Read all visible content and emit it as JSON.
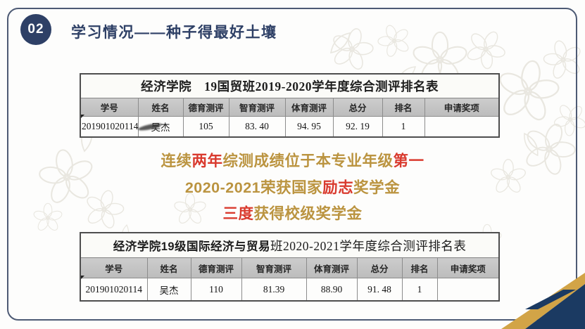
{
  "colors": {
    "navy": "#2e4066",
    "frame": "#4d5a74",
    "gold": "#bb9440",
    "red": "#d93a2e",
    "gold_band": "#d2a447",
    "deep_navy": "#1b3a62",
    "header_bg": "#c4c4c4"
  },
  "header": {
    "badge": "02",
    "title": "学习情况——种子得最好土壤"
  },
  "table1": {
    "title": "经济学院　19国贸班2019-2020学年度综合测评排名表",
    "headers": [
      "学号",
      "姓名",
      "德育测评",
      "智育测评",
      "体育测评",
      "总分",
      "排名",
      "申请奖项"
    ],
    "row": [
      "201901020114",
      "吴杰",
      "105",
      "83. 40",
      "94. 95",
      "92. 19",
      "1",
      ""
    ]
  },
  "highlights": {
    "lines": [
      {
        "segments": [
          {
            "text": "连续",
            "color": "gold"
          },
          {
            "text": "两年",
            "color": "red"
          },
          {
            "text": "综测成绩位于本专业年级",
            "color": "gold"
          },
          {
            "text": "第一",
            "color": "red"
          }
        ]
      },
      {
        "segments": [
          {
            "text": "2020-2021荣获国家",
            "color": "gold"
          },
          {
            "text": "励志",
            "color": "red"
          },
          {
            "text": "奖学金",
            "color": "gold"
          }
        ]
      },
      {
        "segments": [
          {
            "text": "三度",
            "color": "red"
          },
          {
            "text": "获得校级奖学金",
            "color": "gold"
          }
        ]
      }
    ]
  },
  "table2": {
    "title_bold": "经济学院19级国际经济与贸易",
    "title_rest": "班2020-2021学年度综合测评排名表",
    "headers": [
      "学号",
      "姓名",
      "德育测评",
      "智育测评",
      "体育测评",
      "总分",
      "排名",
      "申请奖项"
    ],
    "row": [
      "201901020114",
      "吴杰",
      "110",
      "81.39",
      "88.90",
      "91. 48",
      "1",
      ""
    ]
  }
}
